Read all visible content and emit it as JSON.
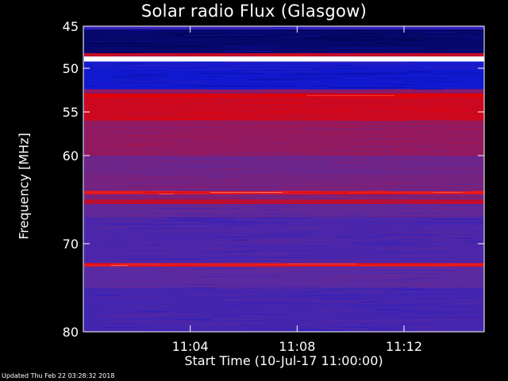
{
  "title": "Solar radio Flux (Glasgow)",
  "footer": "Updated Thu Feb 22 03:28:32 2018",
  "chart_data": {
    "type": "heatmap",
    "title": "Solar radio Flux (Glasgow)",
    "ylabel": "Frequency [MHz]",
    "xlabel": "Start Time (10-Jul-17 11:00:00)",
    "y_axis": {
      "range": [
        45,
        80
      ],
      "inverted": true,
      "ticks": [
        45,
        50,
        55,
        60,
        70,
        80
      ]
    },
    "x_axis": {
      "range": [
        "11:00",
        "11:15"
      ],
      "ticks": [
        "11:04",
        "11:08",
        "11:12"
      ]
    },
    "colormap": [
      "#000040",
      "#1018d0",
      "#5a2aa0",
      "#a01550",
      "#e80000",
      "#ffffff"
    ],
    "bands": [
      {
        "mhz": [
          45.0,
          45.4
        ],
        "level": 0.3
      },
      {
        "mhz": [
          45.4,
          48.2
        ],
        "level": 0.06
      },
      {
        "mhz": [
          48.2,
          48.6
        ],
        "level": 0.7
      },
      {
        "mhz": [
          48.6,
          49.2
        ],
        "level": 1.0
      },
      {
        "mhz": [
          49.2,
          50.2
        ],
        "level": 0.22
      },
      {
        "mhz": [
          50.2,
          52.4
        ],
        "level": 0.2
      },
      {
        "mhz": [
          52.4,
          52.9
        ],
        "level": 0.55
      },
      {
        "mhz": [
          52.9,
          53.4
        ],
        "level": 0.78
      },
      {
        "mhz": [
          53.4,
          56.0
        ],
        "level": 0.72
      },
      {
        "mhz": [
          56.0,
          60.0
        ],
        "level": 0.56
      },
      {
        "mhz": [
          60.0,
          62.0
        ],
        "level": 0.46
      },
      {
        "mhz": [
          62.0,
          64.0
        ],
        "level": 0.48
      },
      {
        "mhz": [
          64.0,
          64.4
        ],
        "level": 0.82
      },
      {
        "mhz": [
          64.4,
          65.0
        ],
        "level": 0.5
      },
      {
        "mhz": [
          65.0,
          65.5
        ],
        "level": 0.68
      },
      {
        "mhz": [
          65.5,
          67.0
        ],
        "level": 0.42
      },
      {
        "mhz": [
          67.0,
          72.2
        ],
        "level": 0.36
      },
      {
        "mhz": [
          72.2,
          72.6
        ],
        "level": 0.82
      },
      {
        "mhz": [
          72.6,
          75.0
        ],
        "level": 0.4
      },
      {
        "mhz": [
          75.0,
          80.0
        ],
        "level": 0.34
      }
    ]
  }
}
